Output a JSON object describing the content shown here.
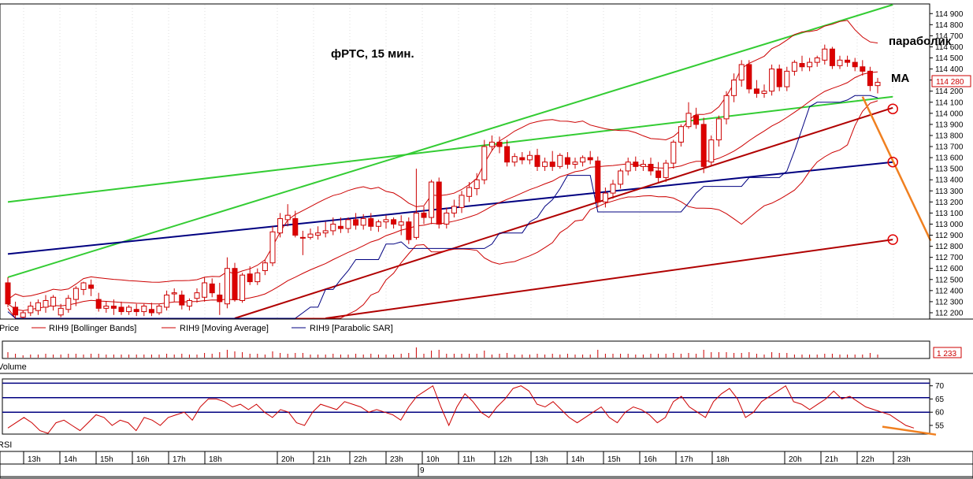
{
  "chart_data": {
    "type": "candlestick",
    "title": "фРТС,  15 мин.",
    "annotations": {
      "parabolic": "параболик",
      "ma": "MA"
    },
    "price_axis": {
      "range": [
        112150,
        114980
      ],
      "ticks": [
        "114 900",
        "114 800",
        "114 700",
        "114 600",
        "114 500",
        "114 400",
        "114 300",
        "114 200",
        "114 100",
        "114 000",
        "113 900",
        "113 800",
        "113 700",
        "113 600",
        "113 500",
        "113 400",
        "113 300",
        "113 200",
        "113 100",
        "113 000",
        "112 900",
        "112 800",
        "112 700",
        "112 600",
        "112 500",
        "112 400",
        "112 300",
        "112 200"
      ],
      "tick_values": [
        114900,
        114800,
        114700,
        114600,
        114500,
        114400,
        114300,
        114200,
        114100,
        114000,
        113900,
        113800,
        113700,
        113600,
        113500,
        113400,
        113300,
        113200,
        113100,
        113000,
        112900,
        112800,
        112700,
        112600,
        112500,
        112400,
        112300,
        112200
      ],
      "last_price_label": "114 280",
      "last_price": 114280
    },
    "legend": [
      {
        "label": "Price",
        "color": "#cc0000"
      },
      {
        "label": "RIH9 [Bollinger Bands]",
        "color": "#cc0000"
      },
      {
        "label": "RIH9 [Moving Average]",
        "color": "#cc0000"
      },
      {
        "label": "RIH9 [Parabolic SAR]",
        "color": "#000080"
      }
    ],
    "volume_panel": {
      "label": "Volume",
      "last_value_label": "1 233"
    },
    "rsi_panel": {
      "label": "RSI",
      "ticks": [
        "70",
        "65",
        "60",
        "55"
      ],
      "tick_values": [
        70,
        65,
        60,
        55
      ],
      "range": [
        52,
        72
      ],
      "levels": [
        71,
        65.5,
        60
      ],
      "values": [
        54,
        56,
        58,
        56,
        53,
        52,
        56,
        57,
        55,
        53,
        56,
        59,
        58,
        55,
        57,
        56,
        53,
        58,
        57,
        55,
        58,
        59,
        60,
        57,
        62,
        65,
        65,
        64,
        62,
        63,
        61,
        63,
        60,
        58,
        61,
        60,
        56,
        55,
        60,
        63,
        62,
        61,
        64,
        63,
        62,
        60,
        61,
        60,
        59,
        57,
        62,
        66,
        68,
        70,
        62,
        55,
        62,
        67,
        64,
        60,
        58,
        62,
        65,
        69,
        70,
        68,
        63,
        62,
        64,
        61,
        58,
        56,
        58,
        60,
        62,
        58,
        56,
        60,
        62,
        61,
        59,
        56,
        58,
        64,
        66,
        62,
        60,
        58,
        64,
        67,
        69,
        65,
        58,
        60,
        64,
        66,
        68,
        70,
        64,
        63,
        61,
        63,
        65,
        68,
        65,
        66,
        64,
        62,
        61,
        60,
        59,
        57,
        55,
        54
      ]
    },
    "time_axis": {
      "labels": [
        "13h",
        "14h",
        "15h",
        "16h",
        "17h",
        "18h",
        "20h",
        "21h",
        "22h",
        "23h",
        "10h",
        "11h",
        "12h",
        "13h",
        "14h",
        "15h",
        "16h",
        "17h",
        "18h",
        "20h",
        "21h",
        "22h",
        "23h"
      ],
      "positions": [
        0,
        1,
        2,
        3,
        4,
        5,
        7,
        8,
        9,
        10,
        11,
        12,
        13,
        14,
        15,
        16,
        17,
        18,
        19,
        21,
        22,
        23,
        24
      ],
      "span": 25,
      "day_label": "9",
      "day_position": 11
    },
    "candles": [
      {
        "o": 112470,
        "h": 112520,
        "c": 112280,
        "l": 112250
      },
      {
        "o": 112250,
        "h": 112300,
        "c": 112180,
        "l": 112150
      },
      {
        "o": 112160,
        "h": 112220,
        "c": 112200,
        "l": 112150
      },
      {
        "o": 112200,
        "h": 112300,
        "c": 112260,
        "l": 112170
      },
      {
        "o": 112220,
        "h": 112320,
        "c": 112290,
        "l": 112180
      },
      {
        "o": 112250,
        "h": 112360,
        "c": 112310,
        "l": 112200
      },
      {
        "o": 112260,
        "h": 112360,
        "c": 112340,
        "l": 112220
      },
      {
        "o": 112180,
        "h": 112280,
        "c": 112240,
        "l": 112160
      },
      {
        "o": 112230,
        "h": 112360,
        "c": 112330,
        "l": 112200
      },
      {
        "o": 112320,
        "h": 112440,
        "c": 112420,
        "l": 112260
      },
      {
        "o": 112410,
        "h": 112480,
        "c": 112470,
        "l": 112360
      },
      {
        "o": 112450,
        "h": 112500,
        "c": 112420,
        "l": 112350
      },
      {
        "o": 112320,
        "h": 112380,
        "c": 112240,
        "l": 112210
      },
      {
        "o": 112240,
        "h": 112300,
        "c": 112260,
        "l": 112200
      },
      {
        "o": 112260,
        "h": 112320,
        "c": 112240,
        "l": 112180
      },
      {
        "o": 112250,
        "h": 112300,
        "c": 112210,
        "l": 112180
      },
      {
        "o": 112210,
        "h": 112270,
        "c": 112250,
        "l": 112180
      },
      {
        "o": 112230,
        "h": 112280,
        "c": 112210,
        "l": 112170
      },
      {
        "o": 112210,
        "h": 112280,
        "c": 112260,
        "l": 112170
      },
      {
        "o": 112230,
        "h": 112290,
        "c": 112200,
        "l": 112170
      },
      {
        "o": 112200,
        "h": 112280,
        "c": 112260,
        "l": 112180
      },
      {
        "o": 112250,
        "h": 112400,
        "c": 112360,
        "l": 112220
      },
      {
        "o": 112370,
        "h": 112420,
        "c": 112380,
        "l": 112300
      },
      {
        "o": 112360,
        "h": 112400,
        "c": 112270,
        "l": 112230
      },
      {
        "o": 112260,
        "h": 112330,
        "c": 112310,
        "l": 112220
      },
      {
        "o": 112330,
        "h": 112420,
        "c": 112380,
        "l": 112290
      },
      {
        "o": 112340,
        "h": 112520,
        "c": 112470,
        "l": 112300
      },
      {
        "o": 112460,
        "h": 112510,
        "c": 112380,
        "l": 112340
      },
      {
        "o": 112360,
        "h": 112470,
        "c": 112300,
        "l": 112180
      },
      {
        "o": 112280,
        "h": 112700,
        "c": 112600,
        "l": 112240
      },
      {
        "o": 112600,
        "h": 112650,
        "c": 112320,
        "l": 112300
      },
      {
        "o": 112310,
        "h": 112560,
        "c": 112540,
        "l": 112290
      },
      {
        "o": 112550,
        "h": 112620,
        "c": 112480,
        "l": 112450
      },
      {
        "o": 112480,
        "h": 112600,
        "c": 112560,
        "l": 112450
      },
      {
        "o": 112580,
        "h": 112680,
        "c": 112650,
        "l": 112540
      },
      {
        "o": 112650,
        "h": 112980,
        "c": 112930,
        "l": 112620
      },
      {
        "o": 112920,
        "h": 113100,
        "c": 113050,
        "l": 112880
      },
      {
        "o": 113040,
        "h": 113180,
        "c": 113080,
        "l": 112980
      },
      {
        "o": 113050,
        "h": 113120,
        "c": 112900,
        "l": 112880
      },
      {
        "o": 112880,
        "h": 112940,
        "c": 112880,
        "l": 112720
      },
      {
        "o": 112880,
        "h": 112960,
        "c": 112910,
        "l": 112860
      },
      {
        "o": 112900,
        "h": 112980,
        "c": 112920,
        "l": 112860
      },
      {
        "o": 112920,
        "h": 113020,
        "c": 112940,
        "l": 112880
      },
      {
        "o": 112940,
        "h": 113060,
        "c": 113000,
        "l": 112900
      },
      {
        "o": 112980,
        "h": 113060,
        "c": 112960,
        "l": 112920
      },
      {
        "o": 112960,
        "h": 113060,
        "c": 113040,
        "l": 112920
      },
      {
        "o": 113040,
        "h": 113100,
        "c": 112990,
        "l": 112950
      },
      {
        "o": 112990,
        "h": 113090,
        "c": 113050,
        "l": 112950
      },
      {
        "o": 113050,
        "h": 113100,
        "c": 112980,
        "l": 112940
      },
      {
        "o": 112980,
        "h": 113040,
        "c": 113020,
        "l": 112930
      },
      {
        "o": 113020,
        "h": 113080,
        "c": 113040,
        "l": 112960
      },
      {
        "o": 113040,
        "h": 113060,
        "c": 113000,
        "l": 112960
      },
      {
        "o": 112990,
        "h": 113080,
        "c": 113020,
        "l": 112900
      },
      {
        "o": 113020,
        "h": 113060,
        "c": 112860,
        "l": 112820
      },
      {
        "o": 112880,
        "h": 113500,
        "c": 113100,
        "l": 112860
      },
      {
        "o": 113100,
        "h": 113160,
        "c": 113060,
        "l": 113000
      },
      {
        "o": 113060,
        "h": 113400,
        "c": 113380,
        "l": 113000
      },
      {
        "o": 113380,
        "h": 113420,
        "c": 113000,
        "l": 112960
      },
      {
        "o": 113000,
        "h": 113150,
        "c": 113100,
        "l": 112960
      },
      {
        "o": 113100,
        "h": 113220,
        "c": 113160,
        "l": 113060
      },
      {
        "o": 113150,
        "h": 113300,
        "c": 113260,
        "l": 113100
      },
      {
        "o": 113250,
        "h": 113380,
        "c": 113330,
        "l": 113200
      },
      {
        "o": 113320,
        "h": 113460,
        "c": 113400,
        "l": 113260
      },
      {
        "o": 113400,
        "h": 113760,
        "c": 113700,
        "l": 113360
      },
      {
        "o": 113700,
        "h": 113800,
        "c": 113740,
        "l": 113660
      },
      {
        "o": 113740,
        "h": 113790,
        "c": 113700,
        "l": 113640
      },
      {
        "o": 113700,
        "h": 113760,
        "c": 113560,
        "l": 113520
      },
      {
        "o": 113560,
        "h": 113640,
        "c": 113610,
        "l": 113520
      },
      {
        "o": 113600,
        "h": 113650,
        "c": 113580,
        "l": 113540
      },
      {
        "o": 113580,
        "h": 113660,
        "c": 113620,
        "l": 113540
      },
      {
        "o": 113620,
        "h": 113680,
        "c": 113520,
        "l": 113480
      },
      {
        "o": 113520,
        "h": 113600,
        "c": 113560,
        "l": 113480
      },
      {
        "o": 113560,
        "h": 113660,
        "c": 113520,
        "l": 113480
      },
      {
        "o": 113520,
        "h": 113640,
        "c": 113620,
        "l": 113500
      },
      {
        "o": 113600,
        "h": 113650,
        "c": 113540,
        "l": 113500
      },
      {
        "o": 113540,
        "h": 113600,
        "c": 113560,
        "l": 113500
      },
      {
        "o": 113560,
        "h": 113620,
        "c": 113600,
        "l": 113520
      },
      {
        "o": 113600,
        "h": 113660,
        "c": 113580,
        "l": 113540
      },
      {
        "o": 113570,
        "h": 113610,
        "c": 113200,
        "l": 113150
      },
      {
        "o": 113200,
        "h": 113330,
        "c": 113280,
        "l": 113150
      },
      {
        "o": 113280,
        "h": 113400,
        "c": 113360,
        "l": 113230
      },
      {
        "o": 113360,
        "h": 113500,
        "c": 113480,
        "l": 113320
      },
      {
        "o": 113480,
        "h": 113600,
        "c": 113560,
        "l": 113440
      },
      {
        "o": 113560,
        "h": 113610,
        "c": 113520,
        "l": 113480
      },
      {
        "o": 113520,
        "h": 113580,
        "c": 113540,
        "l": 113480
      },
      {
        "o": 113540,
        "h": 113600,
        "c": 113480,
        "l": 113440
      },
      {
        "o": 113480,
        "h": 113560,
        "c": 113420,
        "l": 113380
      },
      {
        "o": 113420,
        "h": 113580,
        "c": 113550,
        "l": 113380
      },
      {
        "o": 113550,
        "h": 113760,
        "c": 113740,
        "l": 113500
      },
      {
        "o": 113740,
        "h": 113900,
        "c": 113880,
        "l": 113700
      },
      {
        "o": 113880,
        "h": 114100,
        "c": 114000,
        "l": 113860
      },
      {
        "o": 113980,
        "h": 114050,
        "c": 113900,
        "l": 113860
      },
      {
        "o": 113900,
        "h": 113960,
        "c": 113520,
        "l": 113460
      },
      {
        "o": 113560,
        "h": 113800,
        "c": 113760,
        "l": 113520
      },
      {
        "o": 113760,
        "h": 113980,
        "c": 113950,
        "l": 113700
      },
      {
        "o": 113950,
        "h": 114200,
        "c": 114160,
        "l": 113900
      },
      {
        "o": 114160,
        "h": 114360,
        "c": 114300,
        "l": 114100
      },
      {
        "o": 114300,
        "h": 114480,
        "c": 114440,
        "l": 114240
      },
      {
        "o": 114440,
        "h": 114480,
        "c": 114220,
        "l": 114180
      },
      {
        "o": 114220,
        "h": 114300,
        "c": 114180,
        "l": 114140
      },
      {
        "o": 114180,
        "h": 114260,
        "c": 114200,
        "l": 114140
      },
      {
        "o": 114200,
        "h": 114440,
        "c": 114400,
        "l": 114160
      },
      {
        "o": 114400,
        "h": 114440,
        "c": 114240,
        "l": 114200
      },
      {
        "o": 114240,
        "h": 114420,
        "c": 114380,
        "l": 114200
      },
      {
        "o": 114380,
        "h": 114480,
        "c": 114460,
        "l": 114340
      },
      {
        "o": 114450,
        "h": 114520,
        "c": 114420,
        "l": 114380
      },
      {
        "o": 114420,
        "h": 114500,
        "c": 114460,
        "l": 114380
      },
      {
        "o": 114460,
        "h": 114520,
        "c": 114500,
        "l": 114420
      },
      {
        "o": 114480,
        "h": 114620,
        "c": 114580,
        "l": 114440
      },
      {
        "o": 114580,
        "h": 114600,
        "c": 114430,
        "l": 114400
      },
      {
        "o": 114430,
        "h": 114520,
        "c": 114480,
        "l": 114400
      },
      {
        "o": 114480,
        "h": 114520,
        "c": 114460,
        "l": 114420
      },
      {
        "o": 114460,
        "h": 114500,
        "c": 114420,
        "l": 114380
      },
      {
        "o": 114420,
        "h": 114480,
        "c": 114380,
        "l": 114340
      },
      {
        "o": 114380,
        "h": 114420,
        "c": 114250,
        "l": 114200
      },
      {
        "o": 114250,
        "h": 114320,
        "c": 114280,
        "l": 114180
      }
    ],
    "trend_lines": [
      {
        "name": "green-channel-upper",
        "color": "#33cc33",
        "points": [
          [
            0,
            112520
          ],
          [
            117,
            114980
          ]
        ]
      },
      {
        "name": "green-channel-lower",
        "color": "#33cc33",
        "points": [
          [
            0,
            113200
          ],
          [
            117,
            114150
          ]
        ]
      },
      {
        "name": "blue-trend-line",
        "color": "#000080",
        "points": [
          [
            0,
            112730
          ],
          [
            117,
            113560
          ]
        ]
      },
      {
        "name": "red-channel-upper",
        "color": "#b00000",
        "points": [
          [
            30,
            112150
          ],
          [
            117,
            114050
          ]
        ]
      },
      {
        "name": "red-channel-lower",
        "color": "#b00000",
        "points": [
          [
            42,
            112150
          ],
          [
            117,
            112860
          ]
        ]
      }
    ],
    "projection_lines": [
      {
        "name": "price-projection",
        "color": "#f08020",
        "points": [
          [
            113,
            114150
          ],
          [
            122,
            112850
          ]
        ]
      }
    ],
    "target_circles": [
      {
        "name": "target-circle-1",
        "color": "#e00000",
        "point": [
          117,
          114040
        ]
      },
      {
        "name": "target-circle-2",
        "color": "#e00000",
        "point": [
          117,
          113560
        ]
      },
      {
        "name": "target-circle-3",
        "color": "#e00000",
        "point": [
          117,
          112860
        ]
      }
    ]
  }
}
